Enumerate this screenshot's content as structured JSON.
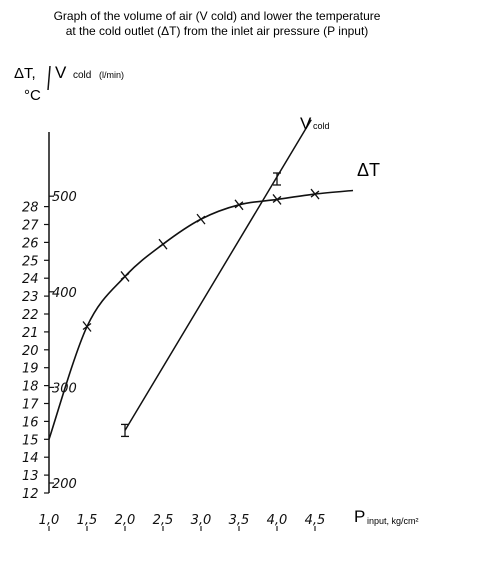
{
  "chart_data": {
    "type": "line",
    "title": [
      "Graph of the volume of air (V cold) and lower the temperature",
      "at the cold outlet (ΔT) from the inlet air pressure (P input)"
    ],
    "xlabel": {
      "main": "P",
      "sub": "input, kg/cm²"
    },
    "ylabel_left": {
      "symbol": "ΔT,",
      "unit": "°C"
    },
    "ylabel_right": {
      "symbol": "V",
      "sub": "cold",
      "unit": "(l/min)"
    },
    "x_ticks": [
      "1,0",
      "1,5",
      "2,0",
      "2,5",
      "3,0",
      "3,5",
      "4,0",
      "4,5"
    ],
    "x_tick_values": [
      1.0,
      1.5,
      2.0,
      2.5,
      3.0,
      3.5,
      4.0,
      4.5
    ],
    "xlim": [
      1.0,
      5.0
    ],
    "yleft_ticks": [
      "12",
      "13",
      "14",
      "15",
      "16",
      "17",
      "18",
      "19",
      "20",
      "21",
      "22",
      "23",
      "24",
      "25",
      "26",
      "27",
      "28"
    ],
    "yleft_tick_values": [
      12,
      13,
      14,
      15,
      16,
      17,
      18,
      19,
      20,
      21,
      22,
      23,
      24,
      25,
      26,
      27,
      28
    ],
    "yright_ticks": [
      "200",
      "300",
      "400",
      "500"
    ],
    "yright_tick_values": [
      200,
      300,
      400,
      500
    ],
    "series": [
      {
        "name": "ΔT",
        "axis": "left",
        "x": [
          1.0,
          1.5,
          2.0,
          2.5,
          3.0,
          3.5,
          4.0,
          4.5
        ],
        "y": [
          15.0,
          21.3,
          24.1,
          25.9,
          27.3,
          28.1,
          28.4,
          28.7
        ],
        "markers_x": [
          1.5,
          2.0,
          2.5,
          3.0,
          3.5,
          4.0,
          4.5
        ],
        "end_x": 5.0,
        "end_y": 28.9
      },
      {
        "name": "V",
        "sub": "cold",
        "axis": "right",
        "x": [
          2.0,
          4.0
        ],
        "y": [
          255,
          518
        ],
        "end_x": 4.45,
        "end_y": 580
      }
    ]
  }
}
